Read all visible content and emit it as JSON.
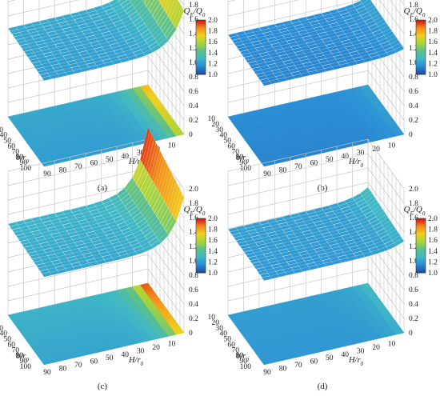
{
  "chart_data": [
    {
      "type": "surface",
      "panel_label": "(a)",
      "colorbar_title": "QE/Q0",
      "x_label": "b/r0",
      "y_label": "H/r0",
      "x_range": [
        10,
        100
      ],
      "y_range": [
        10,
        100
      ],
      "z_range": [
        0,
        2.0
      ],
      "color_range": [
        1.0,
        2.0
      ],
      "surface_fn": "grid of QE/Q0 values rising steeply toward H/r0 = 10",
      "surface": {
        "base": 1.19,
        "edge": 0.62,
        "decay": 0.28,
        "b_gain": 0.08
      }
    },
    {
      "type": "surface",
      "panel_label": "(b)",
      "colorbar_title": "QE/Q0",
      "x_label": "b/r0",
      "y_label": "H/r0",
      "x_range": [
        10,
        100
      ],
      "y_range": [
        10,
        100
      ],
      "z_range": [
        0,
        2.0
      ],
      "color_range": [
        1.0,
        2.0
      ],
      "surface": {
        "base": 1.12,
        "edge": 0.08,
        "decay": 0.3,
        "b_gain": 0.04
      }
    },
    {
      "type": "surface",
      "panel_label": "(c)",
      "colorbar_title": "QE/Q0",
      "x_label": "b/r0",
      "y_label": "H/r0",
      "x_range": [
        10,
        100
      ],
      "y_range": [
        10,
        100
      ],
      "z_range": [
        0,
        2.0
      ],
      "color_range": [
        1.0,
        2.0
      ],
      "surface": {
        "base": 1.22,
        "edge": 0.78,
        "decay": 0.26,
        "b_gain": 0.1
      }
    },
    {
      "type": "surface",
      "panel_label": "(d)",
      "colorbar_title": "QE/Q0",
      "x_label": "b/r0",
      "y_label": "H/r0",
      "x_range": [
        10,
        100
      ],
      "y_range": [
        10,
        100
      ],
      "z_range": [
        0,
        2.0
      ],
      "color_range": [
        1.0,
        2.0
      ],
      "surface": {
        "base": 1.17,
        "edge": 0.12,
        "decay": 0.3,
        "b_gain": 0.05
      }
    }
  ],
  "z_ticks": [
    "0",
    "0.2",
    "0.4",
    "0.6",
    "0.8",
    "1.0",
    "1.2",
    "1.4",
    "1.6",
    "1.8",
    "2.0"
  ],
  "b_ticks": [
    "10",
    "20",
    "30",
    "40",
    "50",
    "60",
    "70",
    "80",
    "90",
    "100"
  ],
  "h_ticks": [
    "90",
    "80",
    "70",
    "60",
    "50",
    "40",
    "30",
    "20",
    "10"
  ],
  "colorbar_ticks": [
    "2.0",
    "1.8",
    "1.6",
    "1.4",
    "1.2",
    "1.0"
  ],
  "axis_text": {
    "b": "b",
    "h": "H",
    "r": "r",
    "sub0": "0",
    "q": "Q",
    "subE": "E",
    "slash": "/"
  },
  "colors": {
    "scale": [
      "#1f4fa3",
      "#2b8fd6",
      "#3fb7c6",
      "#5cc08a",
      "#a6d43a",
      "#f0d020",
      "#f39019",
      "#d8141a"
    ],
    "grid": "#c8c8c8",
    "axis": "#555555",
    "mesh": "#ffffff"
  }
}
